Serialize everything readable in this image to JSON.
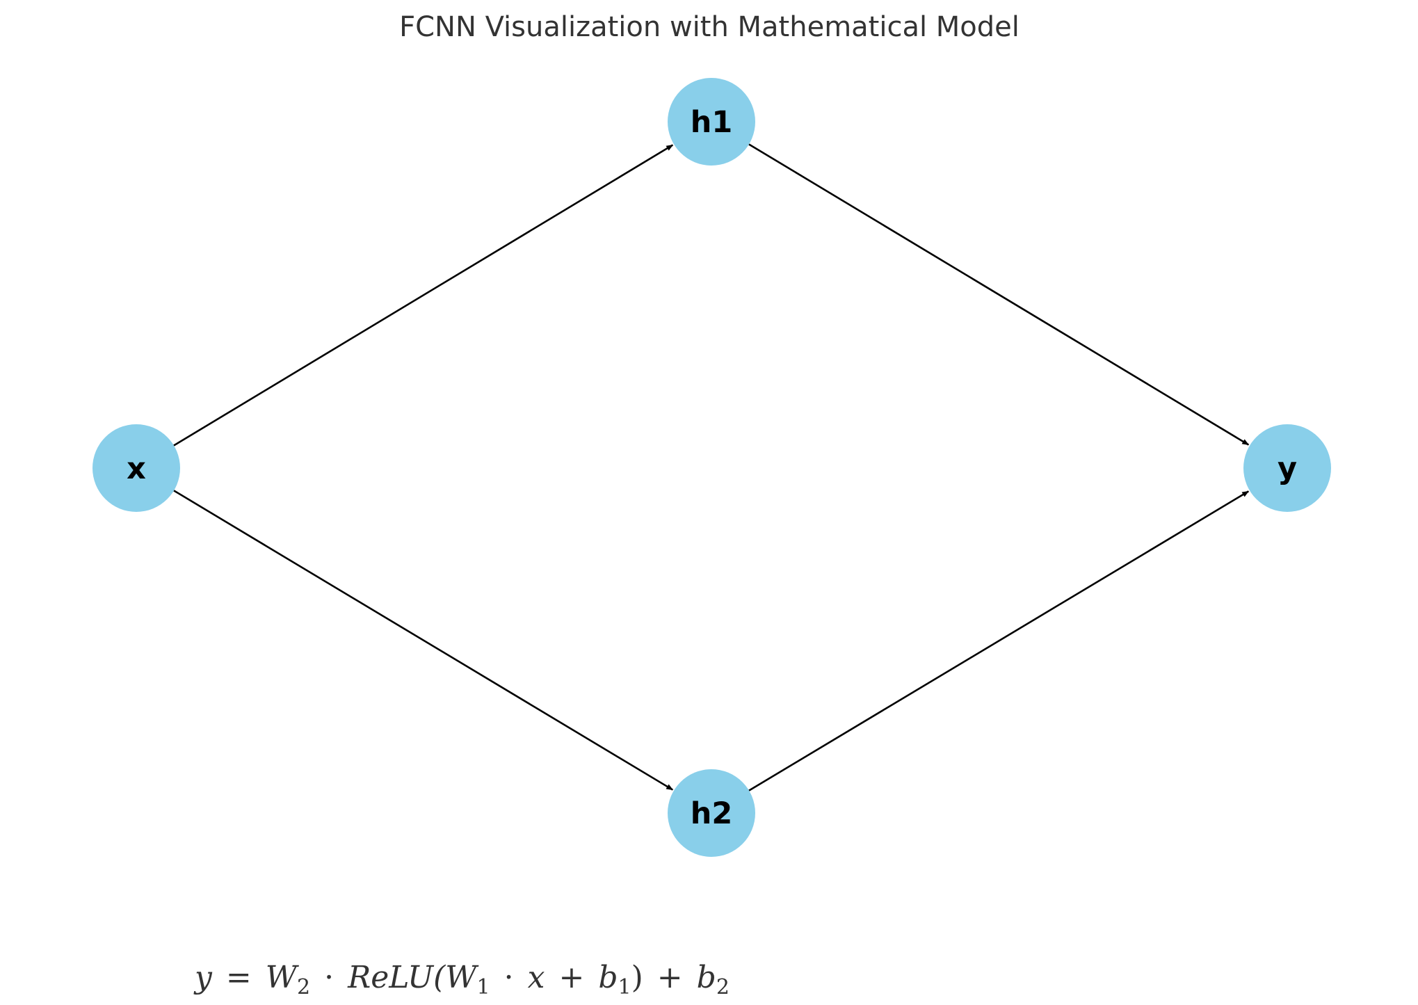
{
  "title": "FCNN Visualization with Mathematical Model",
  "node_color": "#89CFEA",
  "edge_color": "#000000",
  "nodes": [
    {
      "id": "x",
      "label": "x"
    },
    {
      "id": "h1",
      "label": "h1"
    },
    {
      "id": "h2",
      "label": "h2"
    },
    {
      "id": "y",
      "label": "y"
    }
  ],
  "edges": [
    {
      "from": "x",
      "to": "h1"
    },
    {
      "from": "x",
      "to": "h2"
    },
    {
      "from": "h1",
      "to": "y"
    },
    {
      "from": "h2",
      "to": "y"
    }
  ],
  "formula": {
    "text": "y = W2 · ReLU(W1 · x + b1) + b2",
    "y": "y",
    "eq": "=",
    "w2": "W",
    "w2_sub": "2",
    "dot1": "·",
    "relu": "ReLU(",
    "w1": "W",
    "w1_sub": "1",
    "dot2": "·",
    "x": "x",
    "plus1": "+",
    "b1": "b",
    "b1_sub": "1",
    "close": ")",
    "plus2": "+",
    "b2": "b",
    "b2_sub": "2"
  }
}
